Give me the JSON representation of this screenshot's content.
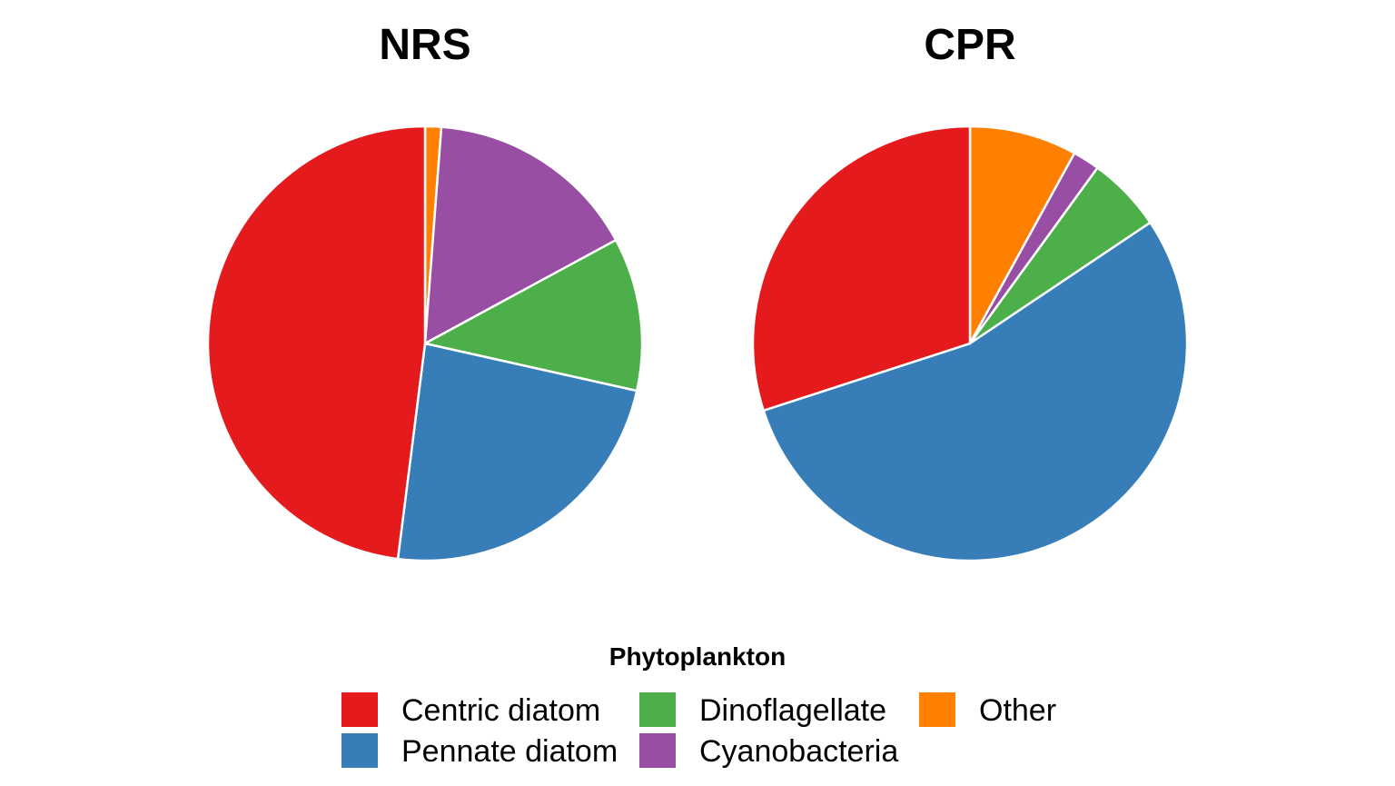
{
  "chart_data": {
    "type": "pie",
    "legend_title": "Phytoplankton",
    "legend_position": "bottom",
    "categories": [
      "Centric diatom",
      "Pennate diatom",
      "Dinoflagellate",
      "Cyanobacteria",
      "Other"
    ],
    "colors": {
      "Centric diatom": "#E41A1C",
      "Pennate diatom": "#377EB8",
      "Dinoflagellate": "#4DAF4A",
      "Cyanobacteria": "#984EA3",
      "Other": "#FF7F00"
    },
    "legend_order": [
      [
        "Centric diatom",
        "Pennate diatom"
      ],
      [
        "Dinoflagellate",
        "Cyanobacteria"
      ],
      [
        "Other"
      ]
    ],
    "panels": [
      {
        "title": "NRS",
        "slices": [
          {
            "name": "Other",
            "value": 1.2
          },
          {
            "name": "Cyanobacteria",
            "value": 15.9
          },
          {
            "name": "Dinoflagellate",
            "value": 11.4
          },
          {
            "name": "Pennate diatom",
            "value": 23.5
          },
          {
            "name": "Centric diatom",
            "value": 48.0
          }
        ]
      },
      {
        "title": "CPR",
        "slices": [
          {
            "name": "Other",
            "value": 8.0
          },
          {
            "name": "Cyanobacteria",
            "value": 2.0
          },
          {
            "name": "Dinoflagellate",
            "value": 5.6
          },
          {
            "name": "Pennate diatom",
            "value": 54.4
          },
          {
            "name": "Centric diatom",
            "value": 30.0
          }
        ]
      }
    ]
  }
}
